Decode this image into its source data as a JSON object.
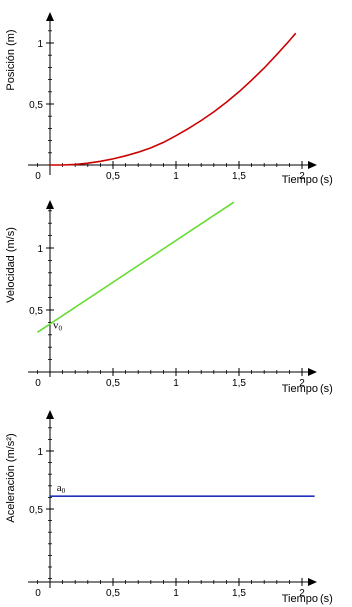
{
  "chart_data": [
    {
      "type": "line",
      "title": "",
      "xlabel": "Tiempo",
      "xunit": "(s)",
      "ylabel": "Posición (m)",
      "xlim": [
        -0.1,
        2.2
      ],
      "ylim": [
        -0.02,
        1.28
      ],
      "grid": false,
      "x_ticks": [
        "0",
        "0,5",
        "1",
        "1,5",
        "2"
      ],
      "y_ticks": [
        "0,5",
        "1"
      ],
      "series": [
        {
          "color": "#cc0000",
          "x": [
            0,
            0.1,
            0.2,
            0.3,
            0.4,
            0.5,
            0.6,
            0.7,
            0.8,
            0.9,
            1.0,
            1.1,
            1.2,
            1.3,
            1.4,
            1.5,
            1.6,
            1.7,
            1.8,
            1.9,
            1.95
          ],
          "y": [
            0,
            0,
            0.005,
            0.015,
            0.03,
            0.05,
            0.075,
            0.105,
            0.14,
            0.185,
            0.24,
            0.3,
            0.365,
            0.435,
            0.515,
            0.6,
            0.695,
            0.795,
            0.905,
            1.02,
            1.08
          ]
        }
      ],
      "annotations": []
    },
    {
      "type": "line",
      "title": "",
      "xlabel": "Tiempo",
      "xunit": "(s)",
      "ylabel": "Velocidad (m/s)",
      "xlim": [
        -0.1,
        2.2
      ],
      "ylim": [
        0.15,
        1.4
      ],
      "grid": false,
      "x_ticks": [
        "0",
        "0,5",
        "1",
        "1,5",
        "2"
      ],
      "y_ticks": [
        "0,5",
        "1"
      ],
      "series": [
        {
          "color": "#66dd33",
          "x": [
            -0.1,
            1.46
          ],
          "y": [
            0.32,
            1.37
          ]
        }
      ],
      "annotations": [
        {
          "text": "v",
          "sub": "0",
          "x": 0.0,
          "y": 0.4
        }
      ]
    },
    {
      "type": "line",
      "title": "",
      "xlabel": "Tiempo",
      "xunit": "(s)",
      "ylabel": "Aceleración (m/s²)",
      "xlim": [
        -0.1,
        2.2
      ],
      "ylim": [
        -0.35,
        1.22
      ],
      "grid": false,
      "x_ticks": [
        "0",
        "0,5",
        "1",
        "1,5",
        "2"
      ],
      "y_ticks": [
        "0,5",
        "1"
      ],
      "series": [
        {
          "color": "#2233bb",
          "x": [
            0.0,
            2.1
          ],
          "y": [
            0.61,
            0.61
          ]
        }
      ],
      "annotations": [
        {
          "text": "a",
          "sub": "0",
          "x": 0.03,
          "y": 0.61
        }
      ]
    }
  ]
}
